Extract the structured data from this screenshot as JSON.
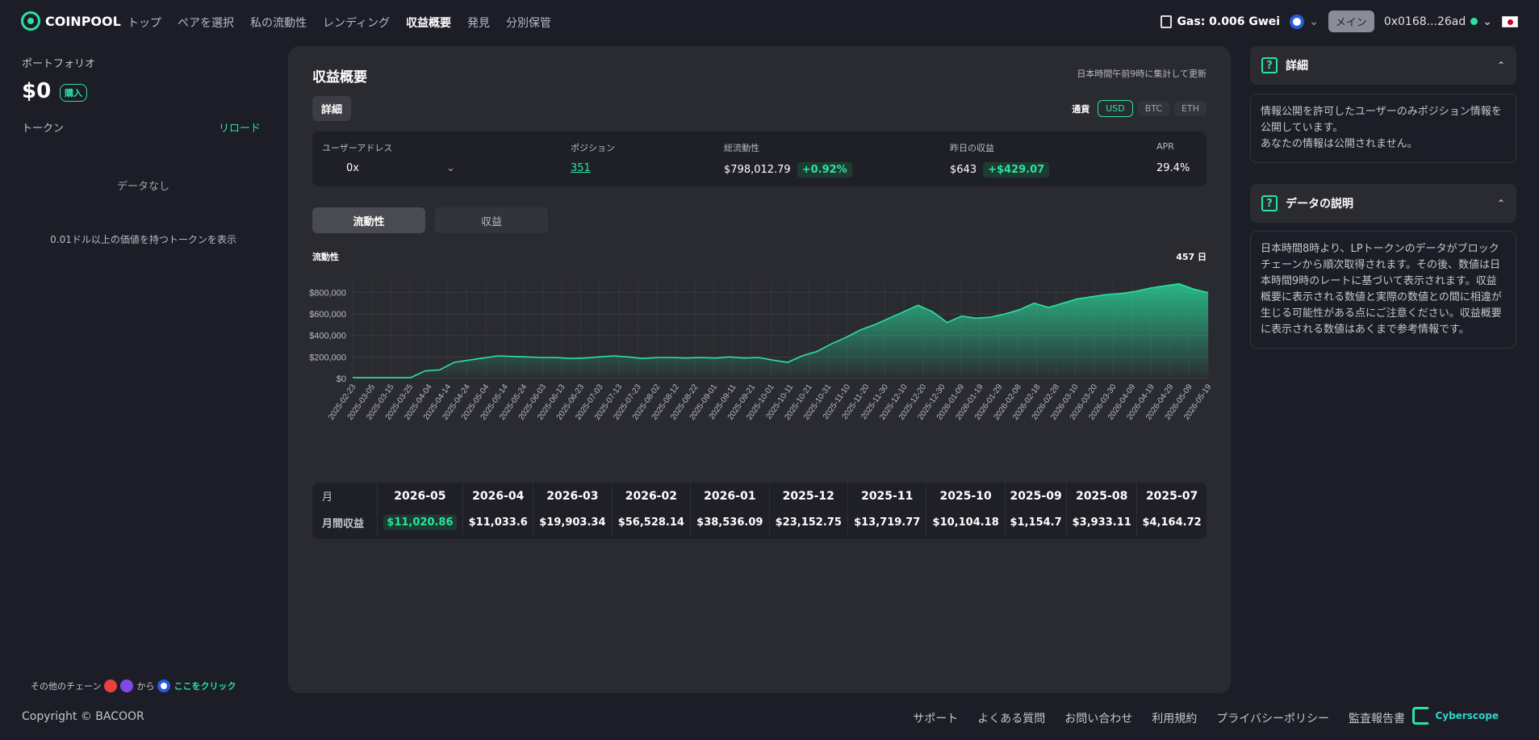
{
  "header": {
    "logo": "COINPOOL",
    "nav": [
      "トップ",
      "ペアを選択",
      "私の流動性",
      "レンディング",
      "収益概要",
      "発見",
      "分別保管"
    ],
    "active_nav": "収益概要",
    "gas": "Gas: 0.006 Gwei",
    "network_btn": "メイン",
    "wallet": "0x0168...26ad"
  },
  "left": {
    "portfolio_label": "ポートフォリオ",
    "amount": "$0",
    "buy_badge": "購入",
    "token_label": "トークン",
    "reload": "リロード",
    "no_data": "データなし",
    "filter_note": "0.01ドル以上の価値を持つトークンを表示",
    "other_chain_prefix": "その他のチェーン",
    "other_chain_mid": "から",
    "click_here": "ここをクリック",
    "copyright": "Copyright © BACOOR"
  },
  "main": {
    "title": "収益概要",
    "update_note": "日本時間午前9時に集計して更新",
    "detail_chip": "詳細",
    "currency_label": "通貨",
    "currencies": [
      "USD",
      "BTC",
      "ETH"
    ],
    "stats": {
      "user_address_label": "ユーザーアドレス",
      "user_address_value": "0x",
      "position_label": "ポジション",
      "position_value": "351",
      "total_liquidity_label": "総流動性",
      "total_liquidity_value": "$798,012.79",
      "total_liquidity_change": "+0.92%",
      "yesterday_label": "昨日の収益",
      "yesterday_value": "$643",
      "yesterday_change": "+$429.07",
      "apr_label": "APR",
      "apr_value": "29.4%"
    },
    "tabs": [
      "流動性",
      "収益"
    ],
    "chart_label": "流動性",
    "chart_days": "457 日",
    "monthly": {
      "row1_label": "月",
      "row2_label": "月間収益",
      "months": [
        "2026-05",
        "2026-04",
        "2026-03",
        "2026-02",
        "2026-01",
        "2025-12",
        "2025-11",
        "2025-10",
        "2025-09",
        "2025-08",
        "2025-07"
      ],
      "values": [
        "$11,020.86",
        "$11,033.6",
        "$19,903.34",
        "$56,528.14",
        "$38,536.09",
        "$23,152.75",
        "$13,719.77",
        "$10,104.18",
        "$1,154.7",
        "$3,933.11",
        "$4,164.72"
      ]
    }
  },
  "right": {
    "card1_title": "詳細",
    "card1_line1": "情報公開を許可したユーザーのみポジション情報を公開しています。",
    "card1_line2": "あなたの情報は公開されません。",
    "card2_title": "データの説明",
    "card2_body": "日本時間8時より、LPトークンのデータがブロックチェーンから順次取得されます。その後、数値は日本時間9時のレートに基づいて表示されます。収益概要に表示される数値と実際の数値との間に相違が生じる可能性がある点にご注意ください。収益概要に表示される数値はあくまで参考情報です。"
  },
  "footer": {
    "links": [
      "サポート",
      "よくある質問",
      "お問い合わせ",
      "利用規約",
      "プライバシーポリシー",
      "監査報告書"
    ],
    "brand": "Cyberscope"
  },
  "colors": {
    "accent": "#29e3a1",
    "background": "#1c1d27",
    "panel": "#2a2b30"
  },
  "chart_data": {
    "type": "area",
    "ylim": [
      0,
      900000
    ],
    "yticks": [
      "$0",
      "$200,000",
      "$400,000",
      "$600,000",
      "$800,000"
    ],
    "ytick_values": [
      0,
      200000,
      400000,
      600000,
      800000
    ],
    "xticks": [
      "2025-02-23",
      "2025-03-05",
      "2025-03-15",
      "2025-03-25",
      "2025-04-04",
      "2025-04-14",
      "2025-04-24",
      "2025-05-04",
      "2025-05-14",
      "2025-05-24",
      "2025-06-03",
      "2025-06-13",
      "2025-06-23",
      "2025-07-03",
      "2025-07-13",
      "2025-07-23",
      "2025-08-02",
      "2025-08-12",
      "2025-08-22",
      "2025-09-01",
      "2025-09-11",
      "2025-09-21",
      "2025-10-01",
      "2025-10-11",
      "2025-10-21",
      "2025-10-31",
      "2025-11-10",
      "2025-11-20",
      "2025-11-30",
      "2025-12-10",
      "2025-12-20",
      "2025-12-30",
      "2026-01-09",
      "2026-01-19",
      "2026-01-29",
      "2026-02-08",
      "2026-02-18",
      "2026-02-28",
      "2026-03-10",
      "2026-03-20",
      "2026-03-30",
      "2026-04-09",
      "2026-04-19",
      "2026-04-29",
      "2026-05-09",
      "2026-05-19"
    ],
    "series": [
      {
        "values": [
          8000,
          8000,
          8000,
          8000,
          8000,
          70000,
          80000,
          150000,
          170000,
          190000,
          210000,
          205000,
          200000,
          195000,
          195000,
          185000,
          190000,
          200000,
          210000,
          200000,
          185000,
          195000,
          195000,
          190000,
          195000,
          190000,
          200000,
          190000,
          195000,
          170000,
          150000,
          210000,
          250000,
          320000,
          380000,
          450000,
          500000,
          560000,
          620000,
          680000,
          620000,
          520000,
          580000,
          560000,
          570000,
          600000,
          640000,
          700000,
          660000,
          700000,
          740000,
          760000,
          780000,
          790000,
          810000,
          840000,
          860000,
          880000,
          830000,
          798000
        ]
      }
    ]
  }
}
